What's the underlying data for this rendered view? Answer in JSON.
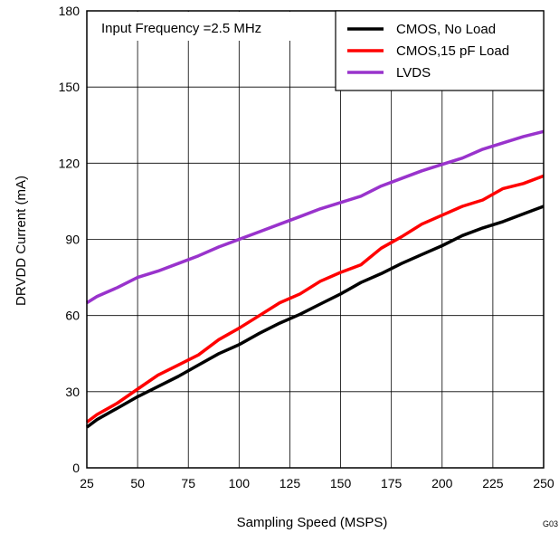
{
  "chart_data": {
    "type": "line",
    "xlabel": "Sampling Speed (MSPS)",
    "ylabel": "DRVDD Current (mA)",
    "xlim": [
      25,
      250
    ],
    "ylim": [
      0,
      180
    ],
    "xticks": [
      25,
      50,
      75,
      100,
      125,
      150,
      175,
      200,
      225,
      250
    ],
    "yticks": [
      0,
      30,
      60,
      90,
      120,
      150,
      180
    ],
    "grid": true,
    "legend_position": "top-right",
    "annotation": "Input Frequency =2.5 MHz",
    "figure_id": "G03",
    "series": [
      {
        "name": "CMOS, No Load",
        "color": "#000000",
        "x": [
          25,
          30,
          40,
          50,
          60,
          70,
          80,
          90,
          100,
          110,
          120,
          130,
          140,
          150,
          160,
          170,
          180,
          190,
          200,
          210,
          220,
          230,
          240,
          250
        ],
        "y": [
          16,
          19,
          23.5,
          28,
          32,
          36,
          40.5,
          45,
          48.5,
          53,
          57,
          60.5,
          64.5,
          68.5,
          73,
          76.5,
          80.5,
          84,
          87.5,
          91.5,
          94.5,
          97,
          100,
          103
        ]
      },
      {
        "name": "CMOS,15 pF Load",
        "color": "#ff0000",
        "x": [
          25,
          30,
          40,
          50,
          60,
          70,
          80,
          90,
          100,
          110,
          120,
          130,
          140,
          150,
          160,
          170,
          180,
          190,
          200,
          210,
          220,
          230,
          240,
          250
        ],
        "y": [
          18,
          21,
          25.5,
          31,
          36.5,
          40.5,
          44.5,
          50.5,
          55,
          60,
          65,
          68.5,
          73.5,
          77,
          80,
          86.5,
          91,
          96,
          99.5,
          103,
          105.5,
          110,
          112,
          115
        ]
      },
      {
        "name": "LVDS",
        "color": "#9933cc",
        "x": [
          25,
          30,
          40,
          50,
          60,
          70,
          80,
          90,
          100,
          110,
          120,
          130,
          140,
          150,
          160,
          170,
          180,
          190,
          200,
          210,
          220,
          230,
          240,
          250
        ],
        "y": [
          65,
          67.5,
          71,
          75,
          77.5,
          80.5,
          83.5,
          87,
          90,
          93,
          96,
          99,
          102,
          104.5,
          107,
          111,
          114,
          117,
          119.5,
          122,
          125.5,
          128,
          130.5,
          132.5
        ]
      }
    ]
  }
}
